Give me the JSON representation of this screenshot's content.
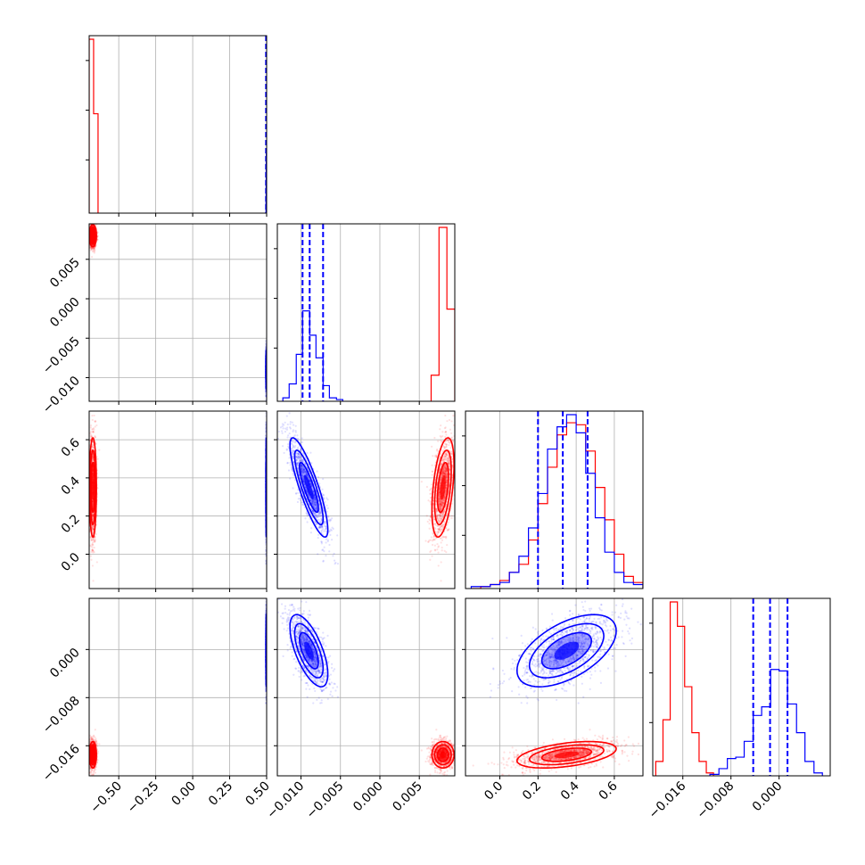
{
  "chart_data": {
    "type": "corner",
    "parameters": 4,
    "grid": true,
    "series": [
      {
        "color": "#ff0000"
      },
      {
        "color": "#0000ff"
      }
    ],
    "axes": [
      {
        "range": [
          -0.7,
          0.5
        ],
        "ticks": [
          -0.5,
          -0.25,
          0.0,
          0.25,
          0.5
        ],
        "tick_labels": [
          "−0.50",
          "−0.25",
          "0.00",
          "0.25",
          "0.50"
        ]
      },
      {
        "range": [
          -0.013,
          0.0095
        ],
        "ticks": [
          -0.01,
          -0.005,
          0.0,
          0.005
        ],
        "tick_labels": [
          "−0.010",
          "−0.005",
          "0.000",
          "0.005"
        ]
      },
      {
        "range": [
          -0.18,
          0.75
        ],
        "ticks": [
          0.0,
          0.2,
          0.4,
          0.6
        ],
        "tick_labels": [
          "0.0",
          "0.2",
          "0.4",
          "0.6"
        ]
      },
      {
        "range": [
          -0.021,
          0.0085
        ],
        "ticks": [
          -0.016,
          -0.008,
          0.0
        ],
        "tick_labels": [
          "−0.016",
          "−0.008",
          "0.000"
        ]
      }
    ],
    "marginals": [
      {
        "blue_quantiles": [
          0.496,
          0.4975,
          0.4985
        ],
        "blue_edges": [
          0.4955,
          0.4962,
          0.4968,
          0.4974,
          0.498,
          0.4986,
          0.4992,
          0.4998
        ],
        "blue_counts": [
          4,
          12,
          20,
          22,
          16,
          8,
          3
        ],
        "red_edges": [
          -0.7,
          -0.67,
          -0.64
        ],
        "red_counts": [
          63,
          36
        ]
      },
      {
        "blue_quantiles": [
          -0.0098,
          -0.0089,
          -0.0072
        ],
        "blue_edges": [
          -0.0123,
          -0.0115,
          -0.0106,
          -0.0098,
          -0.0089,
          -0.0081,
          -0.0072,
          -0.0064,
          -0.0055,
          -0.0047
        ],
        "blue_counts": [
          2,
          10,
          27,
          52,
          38,
          25,
          9,
          2,
          1
        ],
        "red_edges": [
          0.0065,
          0.0075,
          0.0085,
          0.0095
        ],
        "red_counts": [
          15,
          100,
          53
        ]
      },
      {
        "blue_quantiles": [
          0.2,
          0.33,
          0.46
        ],
        "blue_edges": [
          -0.15,
          -0.1,
          -0.05,
          0.0,
          0.05,
          0.1,
          0.15,
          0.2,
          0.25,
          0.3,
          0.35,
          0.4,
          0.45,
          0.5,
          0.55,
          0.6,
          0.65,
          0.7,
          0.75
        ],
        "blue_counts": [
          1,
          1,
          2,
          3,
          8,
          16,
          30,
          47,
          69,
          80,
          86,
          77,
          57,
          35,
          18,
          8,
          3,
          2
        ],
        "red_edges": [
          -0.15,
          -0.1,
          -0.05,
          0.0,
          0.05,
          0.1,
          0.15,
          0.2,
          0.25,
          0.3,
          0.35,
          0.4,
          0.45,
          0.5,
          0.55,
          0.6,
          0.65,
          0.7,
          0.75
        ],
        "red_counts": [
          0,
          1,
          2,
          4,
          8,
          12,
          24,
          42,
          60,
          76,
          82,
          81,
          68,
          50,
          34,
          17,
          6,
          3
        ]
      },
      {
        "blue_quantiles": [
          -0.0043,
          -0.0015,
          0.0014
        ],
        "blue_edges": [
          -0.0115,
          -0.01,
          -0.0086,
          -0.0072,
          -0.0058,
          -0.0043,
          -0.0029,
          -0.0014,
          0.0,
          0.0014,
          0.0029,
          0.0043,
          0.0058,
          0.0072
        ],
        "blue_counts": [
          1,
          5,
          12,
          13,
          24,
          42,
          48,
          74,
          73,
          50,
          30,
          10,
          2
        ],
        "red_edges": [
          -0.0205,
          -0.0193,
          -0.0181,
          -0.0169,
          -0.0157,
          -0.0145,
          -0.0133,
          -0.0121,
          -0.0109
        ],
        "red_counts": [
          10,
          39,
          121,
          104,
          62,
          30,
          10,
          2
        ]
      }
    ],
    "populations": {
      "red": {
        "center": [
          -0.675,
          0.008,
          0.35,
          -0.0175
        ],
        "sd": [
          0.012,
          0.0007,
          0.13,
          0.0011
        ],
        "corr": {
          "1-2": 0.45,
          "2-3": 0.45
        }
      },
      "blue": {
        "center": [
          0.4975,
          -0.009,
          0.35,
          -0.0002
        ],
        "sd": [
          0.0012,
          0.0012,
          0.13,
          0.003
        ],
        "corr": {
          "1-2": -0.85,
          "1-3": -0.65,
          "2-3": 0.55
        }
      }
    }
  }
}
